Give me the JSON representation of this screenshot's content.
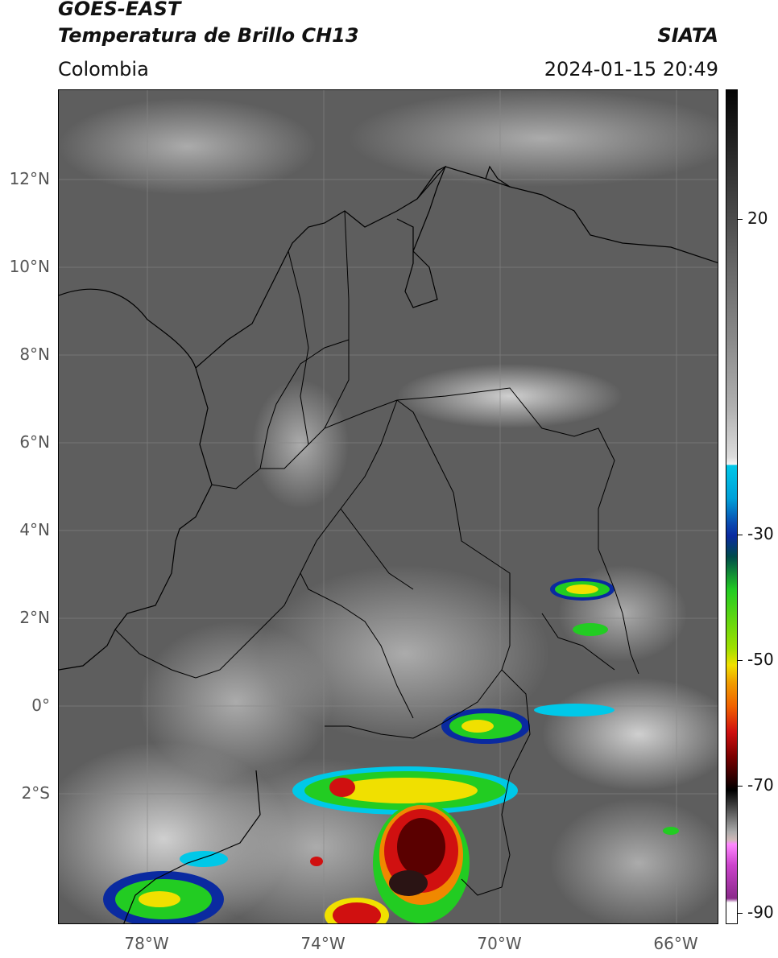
{
  "header": {
    "satellite": "GOES-EAST",
    "product": "Temperatura de Brillo CH13",
    "region": "Colombia",
    "source": "SIATA",
    "timestamp": "2024-01-15 20:49"
  },
  "map": {
    "lat_labels": [
      "12°N",
      "10°N",
      "8°N",
      "6°N",
      "4°N",
      "2°N",
      "0°",
      "2°S"
    ],
    "lon_labels": [
      "78°W",
      "74°W",
      "70°W",
      "66°W"
    ],
    "background": "#5e5e5e"
  },
  "colorbar": {
    "labels": [
      "20",
      "-30",
      "-50",
      "-70",
      "-90"
    ],
    "colors": {
      "warm_gray": "#4a4a4a",
      "cyan": "#00c8e8",
      "blue": "#0a2aa0",
      "green": "#22cc22",
      "yellow": "#f0e000",
      "orange": "#f08800",
      "red": "#d01010",
      "dark_red": "#5a0000",
      "black": "#000000",
      "magenta": "#cc44cc",
      "purple": "#8a2a8a"
    }
  }
}
